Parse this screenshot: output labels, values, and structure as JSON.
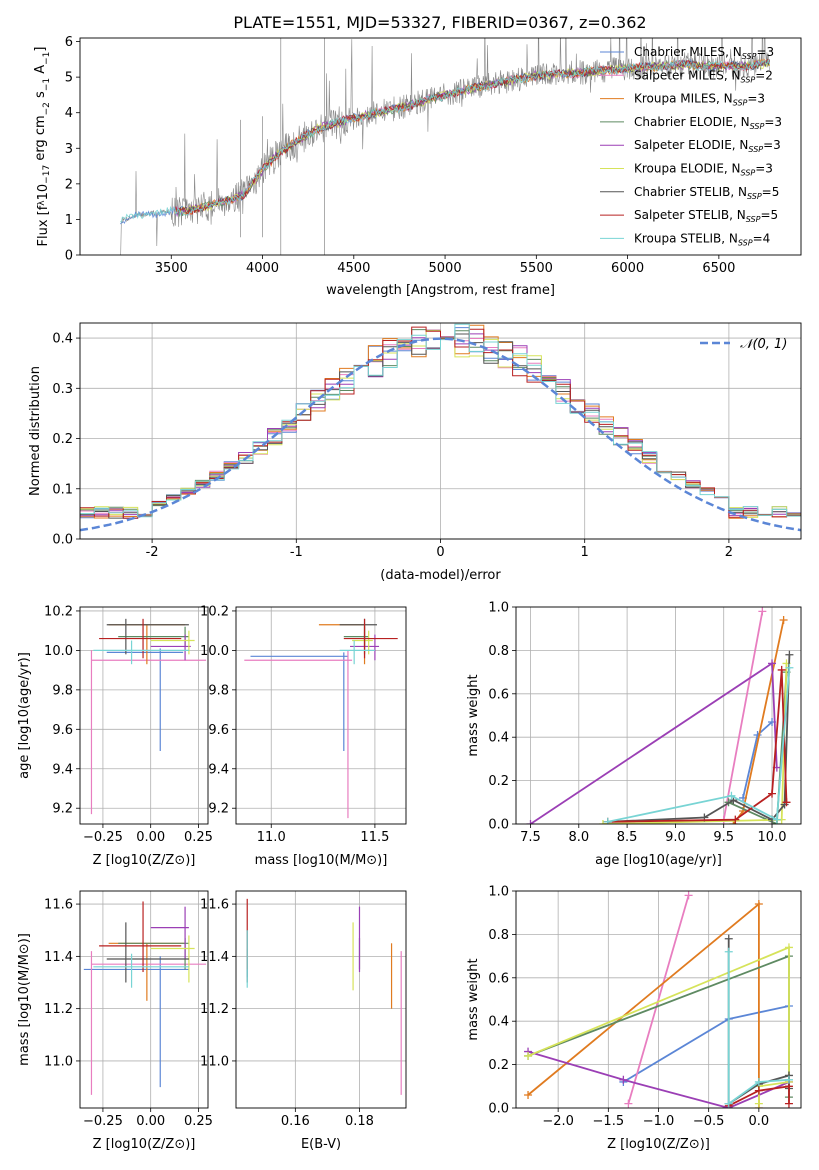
{
  "figure": {
    "title": "PLATE=1551, MJD=53327, FIBERID=0367, z=0.362"
  },
  "colors": {
    "Chabrier MILES": "#5b86d6",
    "Salpeter MILES": "#e87ec0",
    "Kroupa MILES": "#e07b20",
    "Chabrier ELODIE": "#5e8a62",
    "Salpeter ELODIE": "#9b3fb5",
    "Kroupa ELODIE": "#d6e35a",
    "Chabrier STELIB": "#555555",
    "Salpeter STELIB": "#b82121",
    "Kroupa STELIB": "#78d4d4",
    "observed": "#888888",
    "normal": "#5b86d6"
  },
  "chart_data": [
    {
      "id": "spectrum",
      "type": "line",
      "title": "PLATE=1551, MJD=53327, FIBERID=0367, z=0.362",
      "xlabel": "wavelength [Angstrom, rest frame]",
      "ylabel": "Flux [f",
      "ylabel_parts": {
        "a": "Flux [f",
        "b": "λ",
        "c": "10",
        "d": "−17",
        "e": " erg cm",
        "f": "−2",
        "g": " s",
        "h": "−1",
        "i": " A",
        "j": "−1",
        "k": "]"
      },
      "xlim": [
        3000,
        6950
      ],
      "ylim": [
        0,
        6.1
      ],
      "xticks": [
        3500,
        4000,
        4500,
        5000,
        5500,
        6000,
        6500
      ],
      "yticks": [
        0,
        1,
        2,
        3,
        4,
        5,
        6
      ],
      "observed_start": 3220,
      "observed_end": 6780,
      "continuum": [
        [
          3220,
          0.95
        ],
        [
          3300,
          1.1
        ],
        [
          3450,
          1.2
        ],
        [
          3600,
          1.25
        ],
        [
          3750,
          1.45
        ],
        [
          3900,
          1.7
        ],
        [
          4000,
          2.4
        ],
        [
          4100,
          2.9
        ],
        [
          4300,
          3.55
        ],
        [
          4500,
          3.85
        ],
        [
          4800,
          4.2
        ],
        [
          5000,
          4.5
        ],
        [
          5200,
          4.75
        ],
        [
          5500,
          5.05
        ],
        [
          5800,
          5.15
        ],
        [
          6000,
          5.25
        ],
        [
          6300,
          5.35
        ],
        [
          6600,
          5.3
        ],
        [
          6780,
          5.4
        ]
      ],
      "legend": [
        {
          "label": "Chabrier MILES, N",
          "n": "3"
        },
        {
          "label": "Salpeter MILES, N",
          "n": "2"
        },
        {
          "label": "Kroupa MILES, N",
          "n": "3"
        },
        {
          "label": "Chabrier ELODIE, N",
          "n": "3"
        },
        {
          "label": "Salpeter ELODIE, N",
          "n": "3"
        },
        {
          "label": "Kroupa ELODIE, N",
          "n": "3"
        },
        {
          "label": "Chabrier STELIB, N",
          "n": "5"
        },
        {
          "label": "Salpeter STELIB, N",
          "n": "5"
        },
        {
          "label": "Kroupa STELIB, N",
          "n": "4"
        }
      ],
      "legend_sub": "SSP",
      "legend_position": "upper right",
      "grid": false
    },
    {
      "id": "residuals",
      "type": "histogram",
      "xlabel": "(data-model)/error",
      "ylabel": "Normed distribution",
      "xlim": [
        -2.5,
        2.5
      ],
      "ylim": [
        0,
        0.43
      ],
      "xticks": [
        -2,
        -1,
        0,
        1,
        2
      ],
      "yticks": [
        0.0,
        0.1,
        0.2,
        0.3,
        0.4
      ],
      "bin_width": 0.1,
      "legend": "𝒩(0, 1)",
      "legend_position": "upper right",
      "grid": true
    },
    {
      "id": "age_vs_Z",
      "type": "errorbar",
      "xlabel": "Z [log10(Z/Z⊙)]",
      "ylabel": "age  [log10(age/yr)]",
      "xlim": [
        -0.37,
        0.3
      ],
      "ylim": [
        9.12,
        10.22
      ],
      "xticks": [
        -0.25,
        0.0,
        0.25
      ],
      "xtick_labels": [
        "−0.25",
        "0.00",
        "0.25"
      ],
      "yticks": [
        9.2,
        9.4,
        9.6,
        9.8,
        10.0,
        10.2
      ],
      "points": [
        {
          "model": "Chabrier MILES",
          "x": 0.05,
          "xerr": [
            0.28,
            0.12
          ],
          "y": 9.99,
          "yerr": [
            0.5,
            0.02
          ]
        },
        {
          "model": "Salpeter MILES",
          "x": -0.31,
          "xerr": [
            0.0,
            0.6
          ],
          "y": 9.95,
          "yerr": [
            0.78,
            0.05
          ]
        },
        {
          "model": "Kroupa MILES",
          "x": -0.02,
          "xerr": [
            0.2,
            0.2
          ],
          "y": 10.13,
          "yerr": [
            0.2,
            0.0
          ]
        },
        {
          "model": "Chabrier ELODIE",
          "x": 0.18,
          "xerr": [
            0.35,
            0.02
          ],
          "y": 10.07,
          "yerr": [
            0.05,
            0.05
          ]
        },
        {
          "model": "Salpeter ELODIE",
          "x": 0.18,
          "xerr": [
            0.18,
            0.03
          ],
          "y": 10.02,
          "yerr": [
            0.07,
            0.06
          ]
        },
        {
          "model": "Kroupa ELODIE",
          "x": 0.2,
          "xerr": [
            0.2,
            0.03
          ],
          "y": 10.05,
          "yerr": [
            0.07,
            0.05
          ]
        },
        {
          "model": "Chabrier STELIB",
          "x": -0.13,
          "xerr": [
            0.1,
            0.33
          ],
          "y": 10.13,
          "yerr": [
            0.15,
            0.03
          ]
        },
        {
          "model": "Salpeter STELIB",
          "x": -0.04,
          "xerr": [
            0.23,
            0.2
          ],
          "y": 10.06,
          "yerr": [
            0.1,
            0.1
          ]
        },
        {
          "model": "Kroupa STELIB",
          "x": -0.1,
          "xerr": [
            0.2,
            0.3
          ],
          "y": 10.0,
          "yerr": [
            0.07,
            0.05
          ]
        }
      ],
      "grid": true
    },
    {
      "id": "age_vs_mass",
      "type": "errorbar",
      "xlabel": "mass [log10(M/M⊙)]",
      "ylabel": "",
      "xlim": [
        10.83,
        11.65
      ],
      "ylim": [
        9.12,
        10.22
      ],
      "xticks": [
        11.0,
        11.5
      ],
      "xtick_labels": [
        "11.0",
        "11.5"
      ],
      "yticks": [
        9.2,
        9.4,
        9.6,
        9.8,
        10.0,
        10.2
      ],
      "points": [
        {
          "model": "Chabrier MILES",
          "x": 11.35,
          "xerr": [
            0.45,
            0.02
          ],
          "y": 9.97,
          "yerr": [
            0.48,
            0.02
          ]
        },
        {
          "model": "Salpeter MILES",
          "x": 11.37,
          "xerr": [
            0.5,
            0.02
          ],
          "y": 9.95,
          "yerr": [
            0.8,
            0.05
          ]
        },
        {
          "model": "Kroupa MILES",
          "x": 11.45,
          "xerr": [
            0.22,
            0.0
          ],
          "y": 10.13,
          "yerr": [
            0.2,
            0.0
          ]
        },
        {
          "model": "Chabrier ELODIE",
          "x": 11.45,
          "xerr": [
            0.1,
            0.02
          ],
          "y": 10.07,
          "yerr": [
            0.05,
            0.05
          ]
        },
        {
          "model": "Salpeter ELODIE",
          "x": 11.5,
          "xerr": [
            0.12,
            0.02
          ],
          "y": 10.02,
          "yerr": [
            0.07,
            0.06
          ]
        },
        {
          "model": "Kroupa ELODIE",
          "x": 11.47,
          "xerr": [
            0.08,
            0.02
          ],
          "y": 10.05,
          "yerr": [
            0.07,
            0.05
          ]
        },
        {
          "model": "Chabrier STELIB",
          "x": 11.45,
          "xerr": [
            0.12,
            0.06
          ],
          "y": 10.13,
          "yerr": [
            0.15,
            0.03
          ]
        },
        {
          "model": "Salpeter STELIB",
          "x": 11.45,
          "xerr": [
            0.1,
            0.16
          ],
          "y": 10.06,
          "yerr": [
            0.1,
            0.1
          ]
        },
        {
          "model": "Kroupa STELIB",
          "x": 11.4,
          "xerr": [
            0.07,
            0.1
          ],
          "y": 10.0,
          "yerr": [
            0.07,
            0.05
          ]
        }
      ],
      "grid": true
    },
    {
      "id": "weight_vs_age",
      "type": "line",
      "xlabel": "age  [log10(age/yr)]",
      "ylabel": "mass weight",
      "xlim": [
        7.35,
        10.3
      ],
      "ylim": [
        0,
        1.0
      ],
      "xticks": [
        7.5,
        8.0,
        8.5,
        9.0,
        9.5,
        10.0
      ],
      "xtick_labels": [
        "7.5",
        "8.0",
        "8.5",
        "9.0",
        "9.5",
        "10.0"
      ],
      "yticks": [
        0.0,
        0.2,
        0.4,
        0.6,
        0.8,
        1.0
      ],
      "yticks_labels": [
        "0.0",
        "0.2",
        "0.4",
        "0.6",
        "0.8",
        "1.0"
      ],
      "series": [
        {
          "model": "Chabrier MILES",
          "x": [
            9.7,
            9.85,
            10.0
          ],
          "y": [
            0.12,
            0.41,
            0.47
          ]
        },
        {
          "model": "Salpeter MILES",
          "x": [
            9.5,
            9.9
          ],
          "y": [
            0.02,
            0.98
          ]
        },
        {
          "model": "Kroupa MILES",
          "x": [
            9.6,
            9.7,
            10.12
          ],
          "y": [
            0.0,
            0.06,
            0.94
          ]
        },
        {
          "model": "Chabrier ELODIE",
          "x": [
            9.55,
            10.05,
            10.15
          ],
          "y": [
            0.1,
            0.0,
            0.7
          ]
        },
        {
          "model": "Salpeter ELODIE",
          "x": [
            7.5,
            10.0,
            10.05
          ],
          "y": [
            0.0,
            0.74,
            0.26
          ]
        },
        {
          "model": "Kroupa ELODIE",
          "x": [
            8.25,
            10.1,
            10.15
          ],
          "y": [
            0.0,
            0.02,
            0.74
          ]
        },
        {
          "model": "Chabrier STELIB",
          "x": [
            8.3,
            9.3,
            9.6,
            10.0,
            10.13,
            10.18
          ],
          "y": [
            0.01,
            0.03,
            0.11,
            0.02,
            0.09,
            0.78
          ]
        },
        {
          "model": "Salpeter STELIB",
          "x": [
            8.3,
            9.62,
            10.0,
            10.1,
            10.15
          ],
          "y": [
            0.01,
            0.02,
            0.14,
            0.71,
            0.1
          ]
        },
        {
          "model": "Kroupa STELIB",
          "x": [
            8.3,
            9.58,
            10.05,
            10.18
          ],
          "y": [
            0.01,
            0.13,
            0.02,
            0.72
          ]
        }
      ],
      "grid": true
    },
    {
      "id": "mass_vs_Z",
      "type": "errorbar",
      "xlabel": "Z [log10(Z/Z⊙)]",
      "ylabel": "mass [log10(M/M⊙)]",
      "xlim": [
        -0.37,
        0.3
      ],
      "ylim": [
        10.82,
        11.65
      ],
      "xticks": [
        -0.25,
        0.0,
        0.25
      ],
      "xtick_labels": [
        "−0.25",
        "0.00",
        "0.25"
      ],
      "yticks": [
        11.0,
        11.2,
        11.4,
        11.6
      ],
      "points": [
        {
          "model": "Chabrier MILES",
          "x": 0.05,
          "xerr": [
            0.4,
            0.15
          ],
          "y": 11.35,
          "yerr": [
            0.45,
            0.05
          ]
        },
        {
          "model": "Salpeter MILES",
          "x": -0.31,
          "xerr": [
            0.0,
            0.6
          ],
          "y": 11.37,
          "yerr": [
            0.5,
            0.05
          ]
        },
        {
          "model": "Kroupa MILES",
          "x": -0.02,
          "xerr": [
            0.2,
            0.2
          ],
          "y": 11.45,
          "yerr": [
            0.22,
            0.0
          ]
        },
        {
          "model": "Chabrier ELODIE",
          "x": 0.18,
          "xerr": [
            0.35,
            0.02
          ],
          "y": 11.45,
          "yerr": [
            0.1,
            0.02
          ]
        },
        {
          "model": "Salpeter ELODIE",
          "x": 0.18,
          "xerr": [
            0.18,
            0.02
          ],
          "y": 11.51,
          "yerr": [
            0.12,
            0.08
          ]
        },
        {
          "model": "Kroupa ELODIE",
          "x": 0.2,
          "xerr": [
            0.2,
            0.03
          ],
          "y": 11.43,
          "yerr": [
            0.13,
            0.05
          ]
        },
        {
          "model": "Chabrier STELIB",
          "x": -0.13,
          "xerr": [
            0.1,
            0.33
          ],
          "y": 11.39,
          "yerr": [
            0.09,
            0.14
          ]
        },
        {
          "model": "Salpeter STELIB",
          "x": -0.04,
          "xerr": [
            0.23,
            0.2
          ],
          "y": 11.44,
          "yerr": [
            0.1,
            0.17
          ]
        },
        {
          "model": "Kroupa STELIB",
          "x": -0.1,
          "xerr": [
            0.2,
            0.3
          ],
          "y": 11.36,
          "yerr": [
            0.08,
            0.05
          ]
        }
      ],
      "grid": true
    },
    {
      "id": "mass_vs_ebv",
      "type": "errorbar",
      "xlabel": "E(B-V)",
      "ylabel": "",
      "xlim": [
        0.1415,
        0.1945
      ],
      "ylim": [
        10.82,
        11.65
      ],
      "xticks": [
        0.16,
        0.18
      ],
      "xtick_labels": [
        "0.16",
        "0.18"
      ],
      "yticks": [
        11.0,
        11.2,
        11.4,
        11.6
      ],
      "points": [
        {
          "model": "Chabrier MILES",
          "x": 0.145,
          "y": 11.41,
          "yerr": [
            0.09,
            0.02
          ]
        },
        {
          "model": "Salpeter MILES",
          "x": 0.193,
          "y": 11.37,
          "yerr": [
            0.5,
            0.05
          ]
        },
        {
          "model": "Kroupa MILES",
          "x": 0.19,
          "y": 11.45,
          "yerr": [
            0.25,
            0.0
          ]
        },
        {
          "model": "Chabrier ELODIE",
          "x": 0.18,
          "y": 11.45,
          "yerr": [
            0.1,
            0.02
          ]
        },
        {
          "model": "Salpeter ELODIE",
          "x": 0.18,
          "y": 11.51,
          "yerr": [
            0.17,
            0.08
          ]
        },
        {
          "model": "Kroupa ELODIE",
          "x": 0.178,
          "y": 11.43,
          "yerr": [
            0.16,
            0.1
          ]
        },
        {
          "model": "Chabrier STELIB",
          "x": 0.145,
          "y": 11.4,
          "yerr": [
            0.1,
            0.1
          ]
        },
        {
          "model": "Salpeter STELIB",
          "x": 0.145,
          "y": 11.45,
          "yerr": [
            0.1,
            0.17
          ]
        },
        {
          "model": "Kroupa STELIB",
          "x": 0.145,
          "y": 11.39,
          "yerr": [
            0.11,
            0.11
          ]
        }
      ],
      "grid": true
    },
    {
      "id": "weight_vs_Z",
      "type": "line",
      "xlabel": "Z [log10(Z/Z⊙)]",
      "ylabel": "mass weight",
      "xlim": [
        -2.42,
        0.42
      ],
      "ylim": [
        0,
        1.0
      ],
      "xticks": [
        -2.0,
        -1.5,
        -1.0,
        -0.5,
        0.0
      ],
      "xtick_labels": [
        "−2.0",
        "−1.5",
        "−1.0",
        "−0.5",
        "0.0"
      ],
      "yticks": [
        0.0,
        0.2,
        0.4,
        0.6,
        0.8,
        1.0
      ],
      "yticks_labels": [
        "0.0",
        "0.2",
        "0.4",
        "0.6",
        "0.8",
        "1.0"
      ],
      "series": [
        {
          "model": "Chabrier MILES",
          "x": [
            -1.35,
            -0.3,
            0.3
          ],
          "y": [
            0.12,
            0.41,
            0.47
          ]
        },
        {
          "model": "Salpeter MILES",
          "x": [
            -1.3,
            -0.7
          ],
          "y": [
            0.02,
            0.98
          ]
        },
        {
          "model": "Kroupa MILES",
          "x": [
            -2.3,
            0.0,
            0.0
          ],
          "y": [
            0.06,
            0.94,
            0.0
          ]
        },
        {
          "model": "Chabrier ELODIE",
          "x": [
            -2.3,
            0.3,
            0.3
          ],
          "y": [
            0.24,
            0.7,
            0.05
          ]
        },
        {
          "model": "Salpeter ELODIE",
          "x": [
            -2.3,
            -1.35,
            -0.3,
            0.3
          ],
          "y": [
            0.26,
            0.13,
            0.0,
            0.12
          ]
        },
        {
          "model": "Kroupa ELODIE",
          "x": [
            -2.3,
            0.3,
            0.3,
            0.0,
            0.0
          ],
          "y": [
            0.24,
            0.74,
            0.12,
            0.1,
            0.02
          ]
        },
        {
          "model": "Chabrier STELIB",
          "x": [
            -0.3,
            -0.3,
            0.0,
            0.3,
            0.3
          ],
          "y": [
            0.78,
            0.02,
            0.11,
            0.15,
            0.09
          ]
        },
        {
          "model": "Salpeter STELIB",
          "x": [
            -0.3,
            0.0,
            0.3,
            0.3
          ],
          "y": [
            0.01,
            0.08,
            0.1,
            0.02
          ]
        },
        {
          "model": "Kroupa STELIB",
          "x": [
            -0.3,
            -0.3,
            0.0,
            0.3
          ],
          "y": [
            0.72,
            0.02,
            0.12,
            0.13
          ]
        }
      ],
      "grid": true
    }
  ]
}
